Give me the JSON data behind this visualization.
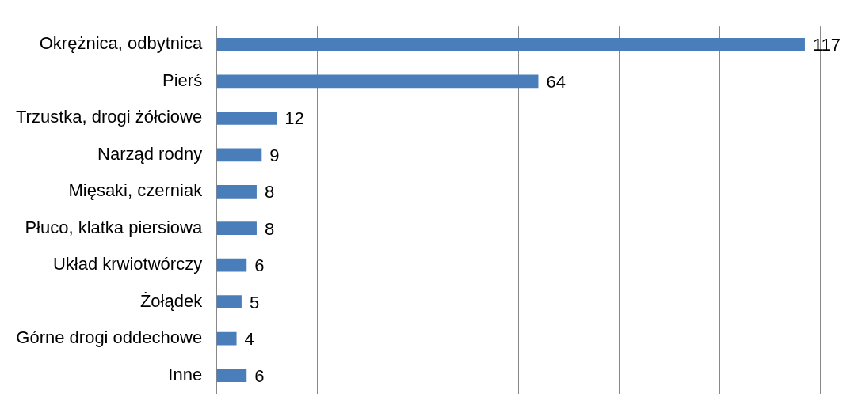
{
  "chart_data": {
    "type": "bar",
    "orientation": "horizontal",
    "categories": [
      "Okrężnica, odbytnica",
      "Pierś",
      "Trzustka, drogi żółciowe",
      "Narząd rodny",
      "Mięsaki, czerniak",
      "Płuco, klatka piersiowa",
      "Układ krwiotwórczy",
      "Żołądek",
      "Górne drogi oddechowe",
      "Inne"
    ],
    "values": [
      117,
      64,
      12,
      9,
      8,
      8,
      6,
      5,
      4,
      6
    ],
    "color": "#4a7ebb",
    "xlim": [
      0,
      120
    ],
    "xticks": [
      {
        "value": 0,
        "label": null
      },
      {
        "value": 20,
        "label": null
      },
      {
        "value": 40,
        "label": null
      },
      {
        "value": 60,
        "label": null
      },
      {
        "value": 80,
        "label": null
      },
      {
        "value": 100,
        "label": null
      },
      {
        "value": 120,
        "label": null
      }
    ],
    "grid": "x",
    "tick_labels": "y",
    "data_labels": true
  }
}
